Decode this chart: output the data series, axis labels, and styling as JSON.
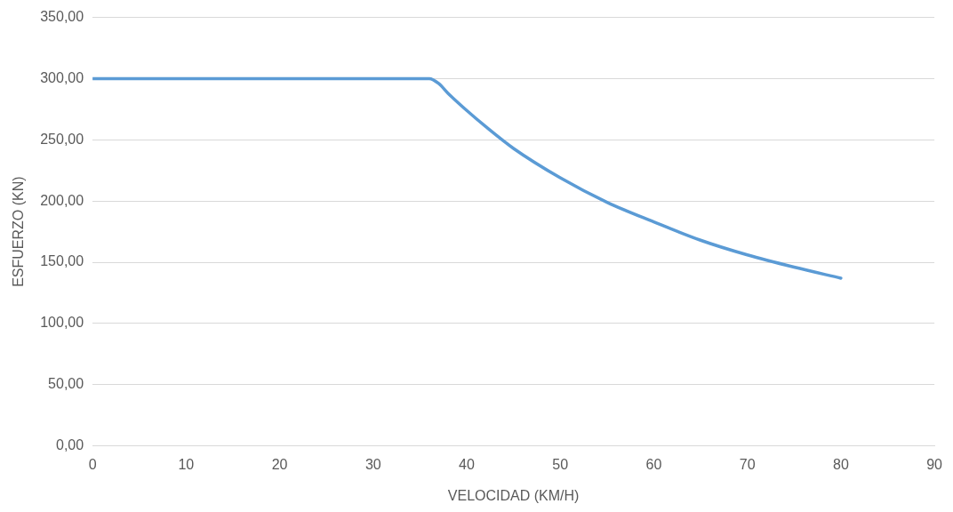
{
  "chart_data": {
    "type": "line",
    "xlabel": "VELOCIDAD (KM/H)",
    "ylabel": "ESFUERZO (KN)",
    "series": [
      {
        "color": "#5b9bd5",
        "x": [
          0,
          5,
          10,
          15,
          20,
          25,
          30,
          35,
          36,
          37,
          38,
          40,
          42,
          45,
          50,
          55,
          60,
          65,
          70,
          75,
          80
        ],
        "values": [
          300,
          300,
          300,
          300,
          300,
          300,
          300,
          300,
          300,
          296,
          288,
          274,
          261,
          243,
          219,
          199,
          183,
          168,
          156,
          146,
          137
        ]
      }
    ],
    "xlim": [
      0,
      90
    ],
    "xticks": [
      0,
      10,
      20,
      30,
      40,
      50,
      60,
      70,
      80,
      90
    ],
    "ylim": [
      0,
      350
    ],
    "yticks": [
      {
        "value": 0,
        "label": "0,00"
      },
      {
        "value": 50,
        "label": "50,00"
      },
      {
        "value": 100,
        "label": "100,00"
      },
      {
        "value": 150,
        "label": "150,00"
      },
      {
        "value": 200,
        "label": "200,00"
      },
      {
        "value": 250,
        "label": "250,00"
      },
      {
        "value": 300,
        "label": "300,00"
      },
      {
        "value": 350,
        "label": "350,00"
      }
    ],
    "grid": "y",
    "legend": false,
    "marker": "none",
    "line_style": "solid"
  }
}
